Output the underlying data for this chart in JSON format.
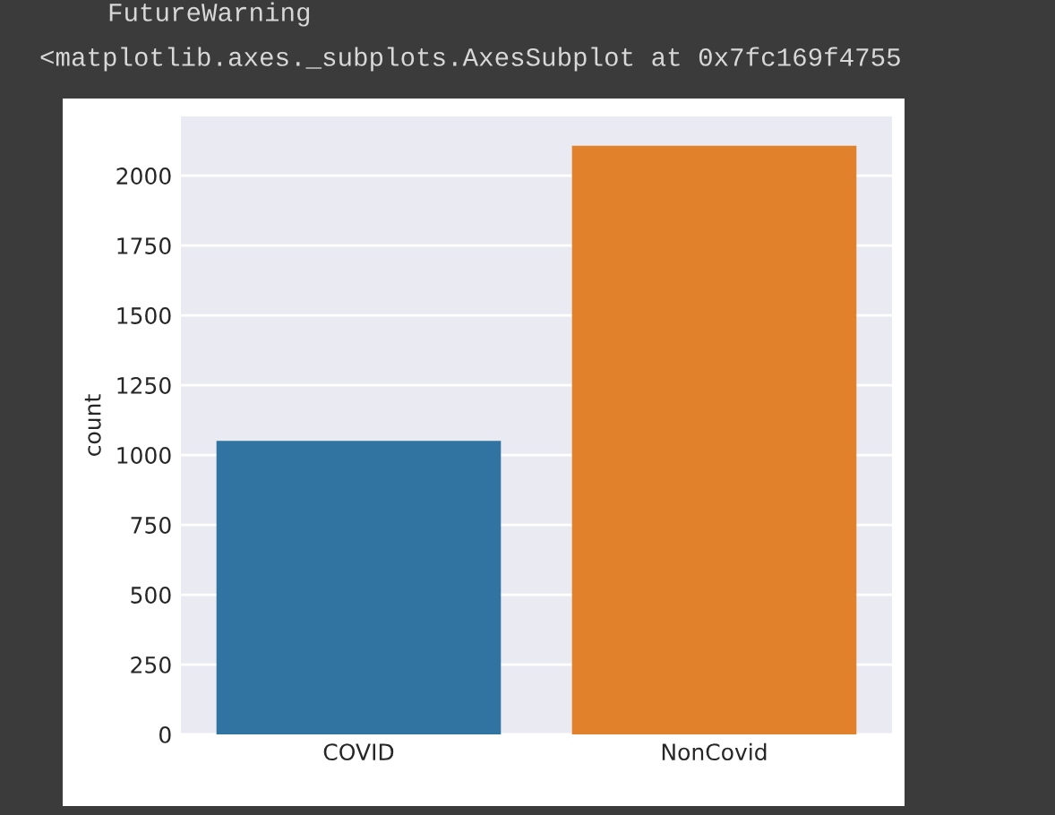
{
  "chart_data": {
    "type": "bar",
    "categories": [
      "COVID",
      "NonCovid"
    ],
    "values": [
      1051,
      2107
    ],
    "colors": [
      "#3274a1",
      "#e1812c"
    ],
    "ylabel": "count",
    "ylim": [
      0,
      2212
    ],
    "yticks": [
      0,
      250,
      500,
      750,
      1000,
      1250,
      1500,
      1750,
      2000
    ],
    "grid": "y",
    "annotations": [
      "FutureWarning",
      "<matplotlib.axes._subplots.AxesSubplot at 0x7fc169f4755"
    ]
  }
}
